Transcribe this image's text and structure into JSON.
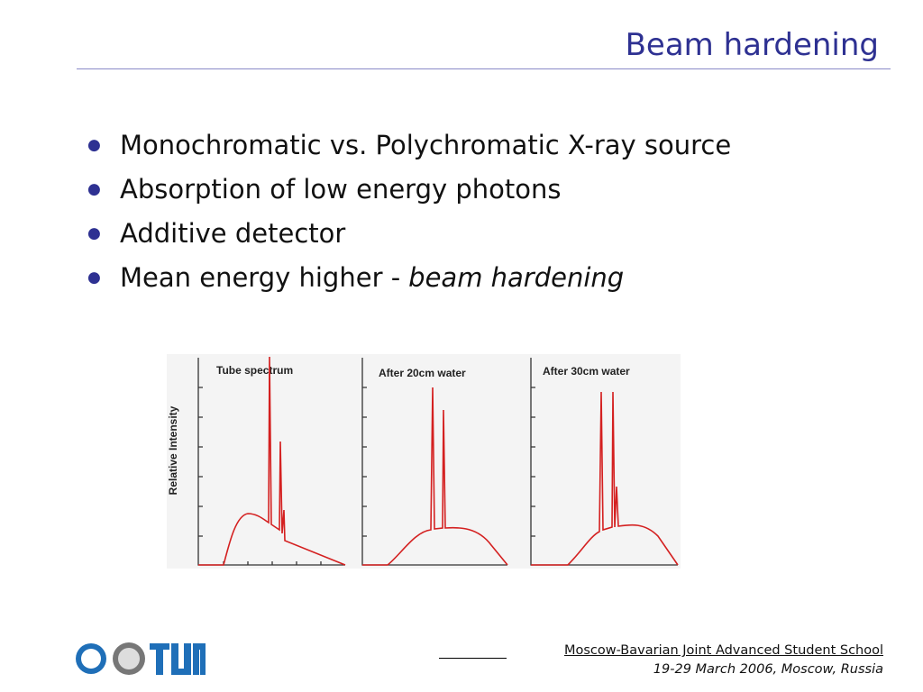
{
  "header": {
    "title": "Beam hardening"
  },
  "bullets": [
    {
      "text": "Monochromatic vs. Polychromatic X-ray source"
    },
    {
      "text": "Absorption of low energy photons"
    },
    {
      "text": "Additive detector"
    },
    {
      "text": "Mean energy higher -",
      "emphasis": "beam hardening"
    }
  ],
  "figure": {
    "y_label": "Relative Intensity",
    "panels": [
      {
        "title": "Tube spectrum"
      },
      {
        "title": "After 20cm water"
      },
      {
        "title": "After 30cm water"
      }
    ]
  },
  "footer": {
    "school": "Moscow-Bavarian Joint Advanced Student School",
    "event": "19-29 March 2006, Moscow, Russia"
  }
}
